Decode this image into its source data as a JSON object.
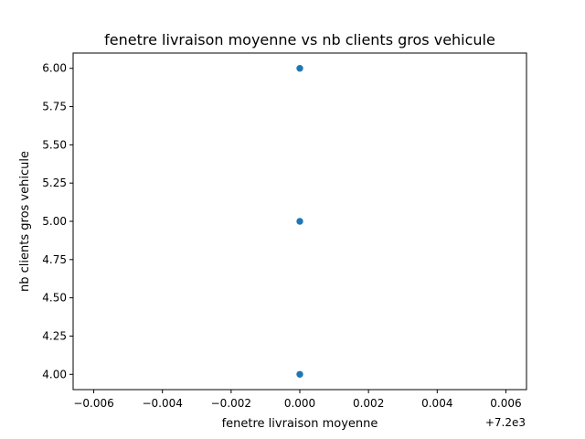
{
  "chart_data": {
    "type": "scatter",
    "title": "fenetre livraison moyenne   vs   nb clients gros vehicule",
    "xlabel": "fenetre livraison moyenne",
    "ylabel": "nb clients gros vehicule",
    "x_offset_label": "+7.2e3",
    "xlim": [
      -0.0066,
      0.0066
    ],
    "ylim": [
      3.9,
      6.1
    ],
    "x_ticks": [
      -0.006,
      -0.004,
      -0.002,
      0.0,
      0.002,
      0.004,
      0.006
    ],
    "x_tick_labels": [
      "−0.006",
      "−0.004",
      "−0.002",
      "0.000",
      "0.002",
      "0.004",
      "0.006"
    ],
    "y_ticks": [
      4.0,
      4.25,
      4.5,
      4.75,
      5.0,
      5.25,
      5.5,
      5.75,
      6.0
    ],
    "y_tick_labels": [
      "4.00",
      "4.25",
      "4.50",
      "4.75",
      "5.00",
      "5.25",
      "5.50",
      "5.75",
      "6.00"
    ],
    "grid": false,
    "point_color": "#1f77b4",
    "points": [
      {
        "x": 0.0,
        "y": 6.0
      },
      {
        "x": 0.0,
        "y": 5.0
      },
      {
        "x": 0.0,
        "y": 4.0
      }
    ]
  }
}
